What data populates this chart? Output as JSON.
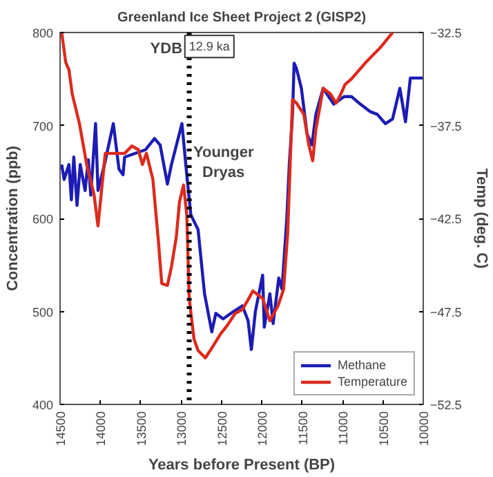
{
  "chart_data": {
    "type": "line",
    "title": "Greenland Ice Sheet Project 2 (GISP2)",
    "xlabel": "Years before Present (BP)",
    "ylabel": "Concentration (ppb)",
    "y2label": "Temp (deg. C)",
    "x": [
      14480,
      14450,
      14390,
      14360,
      14330,
      14290,
      14250,
      14190,
      14150,
      14120,
      14060,
      14030,
      13950,
      13840,
      13770,
      13720,
      13700,
      13440,
      13330,
      13260,
      13170,
      13120,
      12990,
      12930,
      12880,
      12790,
      12710,
      12620,
      12570,
      12480,
      12350,
      12240,
      12170,
      12130,
      12080,
      11990,
      11970,
      11900,
      11860,
      11790,
      11750,
      11690,
      11660,
      11620,
      11600,
      11570,
      11510,
      11440,
      11380,
      11330,
      11240,
      11110,
      10980,
      10890,
      10780,
      10660,
      10570,
      10470,
      10380,
      10290,
      10220,
      10160,
      10000
    ],
    "series": [
      {
        "name": "Methane",
        "color": "#1c1cb4",
        "values": [
          658,
          642,
          658,
          620,
          666,
          614,
          658,
          630,
          663,
          625,
          702,
          630,
          658,
          702,
          653,
          647,
          666,
          674,
          686,
          679,
          637,
          658,
          702,
          647,
          604,
          588,
          519,
          478,
          498,
          492,
          500,
          506,
          490,
          459,
          500,
          539,
          483,
          519,
          487,
          536,
          524,
          601,
          658,
          712,
          767,
          761,
          740,
          691,
          679,
          712,
          740,
          723,
          731,
          731,
          723,
          715,
          712,
          702,
          707,
          740,
          704,
          751,
          751
        ]
      },
      {
        "name": "Temperature",
        "color": "#dc2a1e",
        "axis": "y2",
        "x": [
          14480,
          14430,
          14390,
          14350,
          14260,
          14170,
          14080,
          14030,
          13940,
          13810,
          13700,
          13610,
          13530,
          13480,
          13430,
          13350,
          13280,
          13240,
          13170,
          13120,
          13060,
          13020,
          12970,
          12930,
          12900,
          12840,
          12790,
          12700,
          12610,
          12510,
          12420,
          12330,
          12240,
          12110,
          11990,
          11900,
          11800,
          11730,
          11680,
          11620,
          11570,
          11480,
          11420,
          11370,
          11330,
          11240,
          11150,
          11080,
          11020,
          10970,
          10890,
          10710,
          10530,
          10380
        ],
        "values": [
          -32.5,
          -34.1,
          -34.5,
          -35.8,
          -37.4,
          -39.6,
          -41.2,
          -42.9,
          -39.0,
          -39.0,
          -39.0,
          -38.6,
          -38.8,
          -39.6,
          -39.0,
          -40.4,
          -43.8,
          -46.0,
          -46.1,
          -45.1,
          -43.5,
          -41.6,
          -40.7,
          -42.3,
          -46.8,
          -49.0,
          -49.6,
          -50.0,
          -49.4,
          -48.7,
          -48.2,
          -47.6,
          -47.4,
          -46.4,
          -46.8,
          -48.0,
          -47.2,
          -46.3,
          -43.3,
          -36.1,
          -36.3,
          -36.9,
          -38.5,
          -39.4,
          -37.7,
          -35.5,
          -35.8,
          -36.3,
          -35.8,
          -35.3,
          -35.0,
          -34.1,
          -33.3,
          -32.5
        ]
      }
    ],
    "xlim": [
      14500,
      10000
    ],
    "xticks": [
      14500,
      14000,
      13500,
      13000,
      12500,
      12000,
      11500,
      11000,
      10500,
      10000
    ],
    "ylim": [
      400,
      800
    ],
    "yticks": [
      400,
      500,
      600,
      700,
      800
    ],
    "y2lim": [
      -52.5,
      -32.5
    ],
    "y2ticks": [
      -52.5,
      -47.5,
      -42.5,
      -37.5,
      -32.5
    ],
    "ref_lines": [
      {
        "axis": "x",
        "value": 12900,
        "label": "YDB",
        "color": "#000000",
        "line_style": "dotted"
      }
    ],
    "annotations": [
      {
        "text": "12.9 ka",
        "x": 12650,
        "y": 785
      },
      "Younger Dryas"
    ],
    "grid": false,
    "legend": "bottom right",
    "marker": "none",
    "line_style": "solid"
  }
}
